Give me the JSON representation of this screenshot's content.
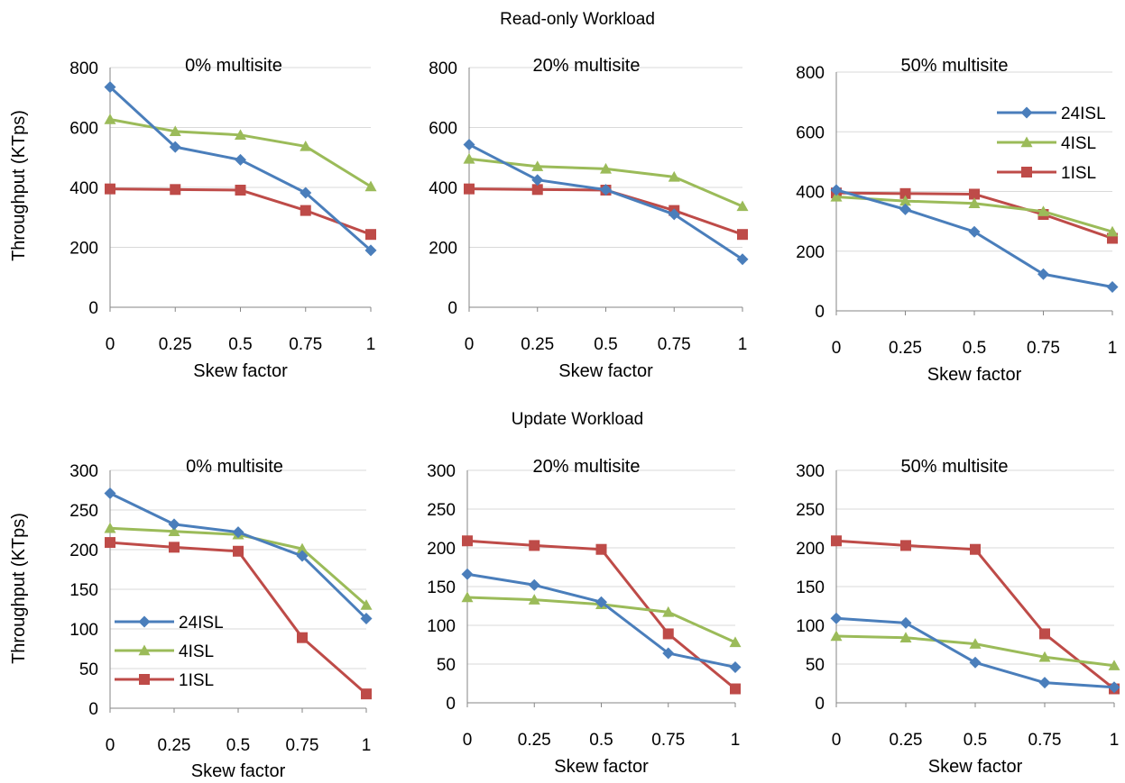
{
  "sections": [
    {
      "title": "Read-only Workload",
      "ylabel": "Throughput (KTps)",
      "xlabel": "Skew factor"
    },
    {
      "title": "Update Workload",
      "ylabel": "Throughput (KTps)",
      "xlabel": "Skew factor"
    }
  ],
  "legend_entries": [
    "24ISL",
    "4ISL",
    "1ISL"
  ],
  "colors": {
    "24ISL": "#4a7ebb",
    "4ISL": "#9bbb59",
    "1ISL": "#be4b48",
    "grid": "#d9d9d9",
    "axis": "#868686"
  },
  "chart_data": [
    {
      "type": "line",
      "section": "Read-only Workload",
      "title": "0% multisite",
      "xlabel": "Skew factor",
      "ylabel": "Throughput (KTps)",
      "x": [
        0,
        0.25,
        0.5,
        0.75,
        1
      ],
      "x_tick_labels": [
        "0",
        "0.25",
        "0.5",
        "0.75",
        "1"
      ],
      "ylim": [
        0,
        800
      ],
      "y_ticks": [
        0,
        200,
        400,
        600,
        800
      ],
      "grid": true,
      "legend": "none",
      "series": [
        {
          "name": "24ISL",
          "marker": "diamond",
          "values": [
            735,
            535,
            492,
            382,
            190
          ]
        },
        {
          "name": "4ISL",
          "marker": "triangle",
          "values": [
            627,
            587,
            575,
            537,
            403
          ]
        },
        {
          "name": "1ISL",
          "marker": "square",
          "values": [
            395,
            393,
            391,
            323,
            243
          ]
        }
      ]
    },
    {
      "type": "line",
      "section": "Read-only Workload",
      "title": "20% multisite",
      "xlabel": "Skew factor",
      "ylabel": "",
      "x": [
        0,
        0.25,
        0.5,
        0.75,
        1
      ],
      "x_tick_labels": [
        "0",
        "0.25",
        "0.5",
        "0.75",
        "1"
      ],
      "ylim": [
        0,
        800
      ],
      "y_ticks": [
        0,
        200,
        400,
        600,
        800
      ],
      "grid": true,
      "legend": "none",
      "series": [
        {
          "name": "24ISL",
          "marker": "diamond",
          "values": [
            543,
            425,
            392,
            310,
            160
          ]
        },
        {
          "name": "4ISL",
          "marker": "triangle",
          "values": [
            495,
            470,
            462,
            435,
            337
          ]
        },
        {
          "name": "1ISL",
          "marker": "square",
          "values": [
            395,
            393,
            391,
            323,
            243
          ]
        }
      ]
    },
    {
      "type": "line",
      "section": "Read-only Workload",
      "title": "50% multisite",
      "xlabel": "Skew factor",
      "ylabel": "",
      "x": [
        0,
        0.25,
        0.5,
        0.75,
        1
      ],
      "x_tick_labels": [
        "0",
        "0.25",
        "0.5",
        "0.75",
        "1"
      ],
      "ylim": [
        0,
        800
      ],
      "y_ticks": [
        0,
        200,
        400,
        600,
        800
      ],
      "grid": true,
      "legend": "top-right",
      "series": [
        {
          "name": "24ISL",
          "marker": "diamond",
          "values": [
            405,
            340,
            265,
            123,
            80
          ]
        },
        {
          "name": "4ISL",
          "marker": "triangle",
          "values": [
            382,
            368,
            360,
            333,
            265
          ]
        },
        {
          "name": "1ISL",
          "marker": "square",
          "values": [
            395,
            393,
            391,
            323,
            243
          ]
        }
      ]
    },
    {
      "type": "line",
      "section": "Update Workload",
      "title": "0% multisite",
      "xlabel": "Skew factor",
      "ylabel": "Throughput (KTps)",
      "x": [
        0,
        0.25,
        0.5,
        0.75,
        1
      ],
      "x_tick_labels": [
        "0",
        "0.25",
        "0.5",
        "0.75",
        "1"
      ],
      "ylim": [
        0,
        300
      ],
      "y_ticks": [
        0,
        50,
        100,
        150,
        200,
        250,
        300
      ],
      "grid": true,
      "legend": "bottom-left",
      "series": [
        {
          "name": "24ISL",
          "marker": "diamond",
          "values": [
            271,
            232,
            222,
            192,
            113
          ]
        },
        {
          "name": "4ISL",
          "marker": "triangle",
          "values": [
            227,
            223,
            219,
            201,
            130
          ]
        },
        {
          "name": "1ISL",
          "marker": "square",
          "values": [
            209,
            203,
            198,
            89,
            18
          ]
        }
      ]
    },
    {
      "type": "line",
      "section": "Update Workload",
      "title": "20% multisite",
      "xlabel": "Skew factor",
      "ylabel": "",
      "x": [
        0,
        0.25,
        0.5,
        0.75,
        1
      ],
      "x_tick_labels": [
        "0",
        "0.25",
        "0.5",
        "0.75",
        "1"
      ],
      "ylim": [
        0,
        300
      ],
      "y_ticks": [
        0,
        50,
        100,
        150,
        200,
        250,
        300
      ],
      "grid": true,
      "legend": "none",
      "series": [
        {
          "name": "24ISL",
          "marker": "diamond",
          "values": [
            166,
            152,
            130,
            64,
            46
          ]
        },
        {
          "name": "4ISL",
          "marker": "triangle",
          "values": [
            136,
            133,
            127,
            117,
            78
          ]
        },
        {
          "name": "1ISL",
          "marker": "square",
          "values": [
            209,
            203,
            198,
            89,
            18
          ]
        }
      ]
    },
    {
      "type": "line",
      "section": "Update Workload",
      "title": "50% multisite",
      "xlabel": "Skew factor",
      "ylabel": "",
      "x": [
        0,
        0.25,
        0.5,
        0.75,
        1
      ],
      "x_tick_labels": [
        "0",
        "0.25",
        "0.5",
        "0.75",
        "1"
      ],
      "ylim": [
        0,
        300
      ],
      "y_ticks": [
        0,
        50,
        100,
        150,
        200,
        250,
        300
      ],
      "grid": true,
      "legend": "none",
      "series": [
        {
          "name": "24ISL",
          "marker": "diamond",
          "values": [
            109,
            103,
            52,
            26,
            20
          ]
        },
        {
          "name": "4ISL",
          "marker": "triangle",
          "values": [
            86,
            84,
            76,
            59,
            48
          ]
        },
        {
          "name": "1ISL",
          "marker": "square",
          "values": [
            209,
            203,
            198,
            89,
            18
          ]
        }
      ]
    }
  ]
}
